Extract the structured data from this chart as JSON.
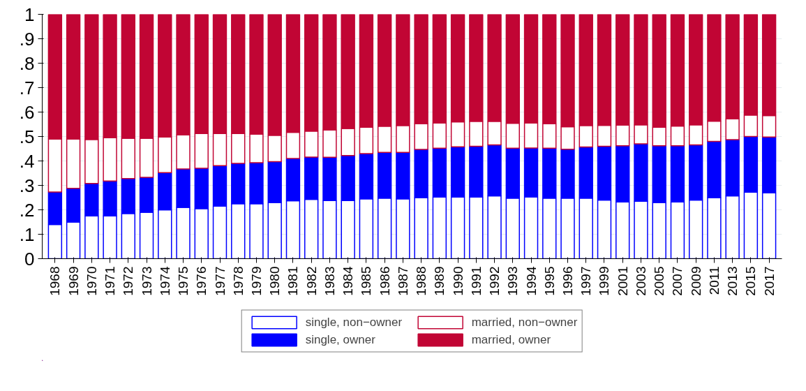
{
  "chart_data": {
    "type": "bar",
    "stacked": true,
    "categories": [
      "1968",
      "1969",
      "1970",
      "1971",
      "1972",
      "1973",
      "1974",
      "1975",
      "1976",
      "1977",
      "1978",
      "1979",
      "1980",
      "1981",
      "1982",
      "1983",
      "1984",
      "1985",
      "1986",
      "1987",
      "1988",
      "1989",
      "1990",
      "1991",
      "1992",
      "1993",
      "1994",
      "1995",
      "1996",
      "1997",
      "1999",
      "2001",
      "2003",
      "2005",
      "2007",
      "2009",
      "2011",
      "2013",
      "2015",
      "2017"
    ],
    "series": [
      {
        "name": "single, non−owner",
        "color": "#0000ff",
        "values": [
          0.14,
          0.15,
          0.175,
          0.175,
          0.185,
          0.19,
          0.2,
          0.21,
          0.205,
          0.215,
          0.225,
          0.225,
          0.23,
          0.237,
          0.243,
          0.238,
          0.238,
          0.245,
          0.248,
          0.245,
          0.25,
          0.252,
          0.252,
          0.252,
          0.257,
          0.248,
          0.253,
          0.248,
          0.248,
          0.248,
          0.24,
          0.232,
          0.235,
          0.23,
          0.232,
          0.24,
          0.25,
          0.257,
          0.272,
          0.27
        ]
      },
      {
        "name": "single, owner",
        "color": "#0000ff",
        "values": [
          0.133,
          0.138,
          0.133,
          0.143,
          0.143,
          0.143,
          0.152,
          0.157,
          0.165,
          0.166,
          0.165,
          0.168,
          0.167,
          0.173,
          0.173,
          0.177,
          0.184,
          0.185,
          0.187,
          0.19,
          0.197,
          0.2,
          0.206,
          0.208,
          0.209,
          0.204,
          0.2,
          0.204,
          0.2,
          0.209,
          0.22,
          0.23,
          0.235,
          0.232,
          0.23,
          0.226,
          0.23,
          0.23,
          0.228,
          0.228
        ]
      },
      {
        "name": "married, non−owner",
        "color": "#c10534",
        "values": [
          0.217,
          0.202,
          0.18,
          0.177,
          0.165,
          0.16,
          0.146,
          0.14,
          0.142,
          0.131,
          0.122,
          0.117,
          0.108,
          0.107,
          0.106,
          0.112,
          0.111,
          0.108,
          0.107,
          0.11,
          0.106,
          0.104,
          0.102,
          0.102,
          0.096,
          0.102,
          0.103,
          0.101,
          0.092,
          0.088,
          0.086,
          0.085,
          0.078,
          0.076,
          0.081,
          0.082,
          0.083,
          0.086,
          0.088,
          0.088
        ]
      },
      {
        "name": "married, owner",
        "color": "#c10534",
        "values": [
          0.51,
          0.51,
          0.512,
          0.505,
          0.507,
          0.507,
          0.502,
          0.493,
          0.488,
          0.488,
          0.488,
          0.49,
          0.495,
          0.483,
          0.478,
          0.473,
          0.467,
          0.462,
          0.458,
          0.455,
          0.447,
          0.444,
          0.44,
          0.438,
          0.438,
          0.446,
          0.444,
          0.447,
          0.46,
          0.455,
          0.454,
          0.453,
          0.452,
          0.462,
          0.457,
          0.452,
          0.437,
          0.427,
          0.412,
          0.414
        ]
      }
    ],
    "ylim": [
      0,
      1
    ],
    "yticks": [
      {
        "value": 0,
        "label": "0"
      },
      {
        "value": 0.1,
        "label": ".1"
      },
      {
        "value": 0.2,
        "label": ".2"
      },
      {
        "value": 0.3,
        "label": ".3"
      },
      {
        "value": 0.4,
        "label": ".4"
      },
      {
        "value": 0.5,
        "label": ".5"
      },
      {
        "value": 0.6,
        "label": ".6"
      },
      {
        "value": 0.7,
        "label": ".7"
      },
      {
        "value": 0.8,
        "label": ".8"
      },
      {
        "value": 0.9,
        "label": ".9"
      },
      {
        "value": 1,
        "label": "1"
      }
    ],
    "grid": "y",
    "legend": "bottom"
  }
}
